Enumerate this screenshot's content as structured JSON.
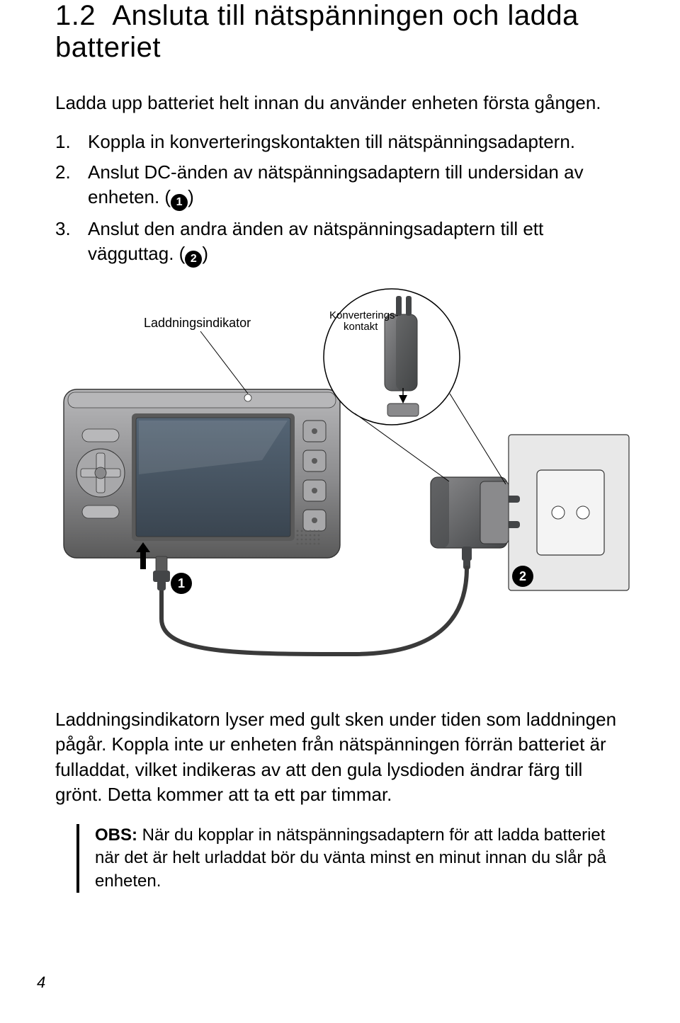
{
  "section": {
    "number": "1.2",
    "title": "Ansluta till nätspänningen och ladda batteriet"
  },
  "intro": "Ladda upp batteriet helt innan du använder enheten första gången.",
  "steps": [
    {
      "text": "Koppla in konverteringskontakten till nätspänningsadaptern."
    },
    {
      "text_before": "Anslut DC-änden av nätspänningsadaptern till undersidan av enheten. (",
      "marker": "1",
      "text_after": ")"
    },
    {
      "text_before": "Anslut den andra änden av nätspänningsadaptern till ett vägguttag. (",
      "marker": "2",
      "text_after": ")"
    }
  ],
  "diagram": {
    "label_indicator": "Laddningsindikator",
    "label_connector_line1": "Konverterings-",
    "label_connector_line2": "kontakt",
    "marker1": "1",
    "marker2": "2",
    "colors": {
      "device_dark": "#5a5a5a",
      "device_medium": "#8a8a8c",
      "device_light": "#b8b8ba",
      "screen_fill": "#4a5a6a",
      "screen_inner_1": "#3a4550",
      "screen_inner_2": "#556575",
      "outline": "#333333",
      "button_panel": "#a8a8aa",
      "adapter_body": "#606264",
      "adapter_dark": "#434547",
      "wall": "#e8e8e8",
      "outlet": "#f4f4f4",
      "shadow": "#d0d0d0",
      "cable": "#3a3a3a",
      "white": "#ffffff",
      "black": "#000000"
    }
  },
  "post_diagram": "Laddningsindikatorn lyser med gult sken under tiden som laddningen pågår. Koppla inte ur enheten från nätspänningen förrän batteriet är fulladdat, vilket indikeras av att den gula lysdioden ändrar färg till grönt. Detta kommer att ta ett par timmar.",
  "note": {
    "label": "OBS:",
    "body": "När du kopplar in nätspänningsadaptern för att ladda batteriet när det är helt urladdat bör du vänta minst en minut innan du slår på enheten."
  },
  "page_number": "4"
}
